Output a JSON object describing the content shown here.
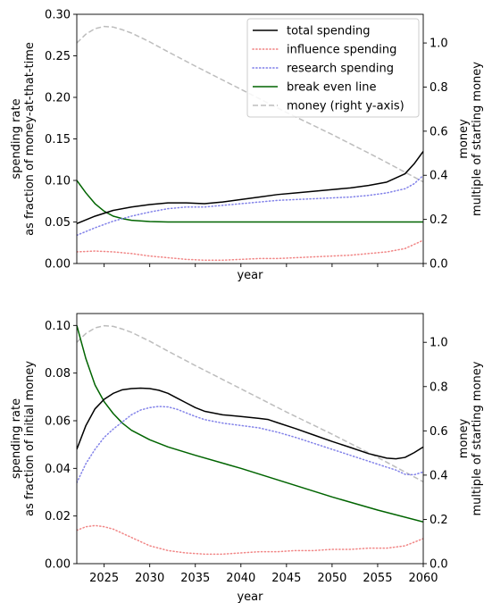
{
  "chart_data": [
    {
      "type": "line",
      "title": "",
      "xlabel": "year",
      "ylabel_lines": [
        "spending rate",
        "as fraction of money-at-that-time"
      ],
      "y2label_lines": [
        "money",
        "multiple of starting money"
      ],
      "xlim": [
        2022,
        2060
      ],
      "ylim": [
        0,
        0.3
      ],
      "y2lim": [
        0,
        1.13
      ],
      "yticks": [
        0.0,
        0.05,
        0.1,
        0.15,
        0.2,
        0.25,
        0.3
      ],
      "ytick_labels": [
        "0.00",
        "0.05",
        "0.10",
        "0.15",
        "0.20",
        "0.25",
        "0.30"
      ],
      "y2ticks": [
        0.0,
        0.2,
        0.4,
        0.6,
        0.8,
        1.0
      ],
      "y2tick_labels": [
        "0.0",
        "0.2",
        "0.4",
        "0.6",
        "0.8",
        "1.0"
      ],
      "xticks": [
        2025,
        2030,
        2035,
        2040,
        2045,
        2050,
        2055,
        2060
      ],
      "xtick_labels": [],
      "legend_position": "top-right",
      "legend": [
        {
          "label": "total spending",
          "color": "#000000",
          "style": "solid"
        },
        {
          "label": "influence spending",
          "color": "#f08080",
          "style": "dotted"
        },
        {
          "label": "research spending",
          "color": "#7b7be8",
          "style": "dotted"
        },
        {
          "label": "break even line",
          "color": "#006400",
          "style": "solid"
        },
        {
          "label": "money (right y-axis)",
          "color": "#bdbdbd",
          "style": "dashed"
        }
      ],
      "series": [
        {
          "name": "total spending",
          "axis": "left",
          "color": "#000000",
          "style": "solid",
          "x": [
            2022,
            2024,
            2026,
            2028,
            2030,
            2032,
            2034,
            2036,
            2038,
            2040,
            2042,
            2044,
            2046,
            2048,
            2050,
            2052,
            2054,
            2056,
            2058,
            2059,
            2060
          ],
          "y": [
            0.048,
            0.057,
            0.064,
            0.068,
            0.071,
            0.073,
            0.073,
            0.072,
            0.074,
            0.077,
            0.08,
            0.083,
            0.085,
            0.087,
            0.089,
            0.091,
            0.094,
            0.098,
            0.108,
            0.12,
            0.135
          ]
        },
        {
          "name": "influence spending",
          "axis": "left",
          "color": "#f08080",
          "style": "dotted",
          "x": [
            2022,
            2024,
            2026,
            2028,
            2030,
            2032,
            2034,
            2036,
            2038,
            2040,
            2042,
            2044,
            2046,
            2048,
            2050,
            2052,
            2054,
            2056,
            2058,
            2060
          ],
          "y": [
            0.014,
            0.015,
            0.014,
            0.012,
            0.009,
            0.007,
            0.005,
            0.004,
            0.004,
            0.005,
            0.006,
            0.006,
            0.007,
            0.008,
            0.009,
            0.01,
            0.012,
            0.014,
            0.018,
            0.028
          ]
        },
        {
          "name": "research spending",
          "axis": "left",
          "color": "#7b7be8",
          "style": "dotted",
          "x": [
            2022,
            2024,
            2026,
            2028,
            2030,
            2032,
            2034,
            2036,
            2038,
            2040,
            2042,
            2044,
            2046,
            2048,
            2050,
            2052,
            2054,
            2056,
            2058,
            2059,
            2060
          ],
          "y": [
            0.034,
            0.043,
            0.051,
            0.057,
            0.062,
            0.066,
            0.068,
            0.068,
            0.07,
            0.072,
            0.074,
            0.076,
            0.077,
            0.078,
            0.079,
            0.08,
            0.082,
            0.085,
            0.09,
            0.096,
            0.106
          ]
        },
        {
          "name": "break even line",
          "axis": "left",
          "color": "#006400",
          "style": "solid",
          "x": [
            2022,
            2023,
            2024,
            2025,
            2026,
            2027,
            2028,
            2030,
            2032,
            2035,
            2040,
            2045,
            2050,
            2055,
            2060
          ],
          "y": [
            0.1,
            0.085,
            0.072,
            0.063,
            0.057,
            0.054,
            0.052,
            0.0505,
            0.05,
            0.05,
            0.05,
            0.05,
            0.05,
            0.05,
            0.05
          ]
        },
        {
          "name": "money (right y-axis)",
          "axis": "right",
          "color": "#bdbdbd",
          "style": "dashed",
          "x": [
            2022,
            2023,
            2024,
            2025,
            2026,
            2027,
            2028,
            2030,
            2032,
            2035,
            2040,
            2045,
            2050,
            2055,
            2060
          ],
          "y": [
            1.0,
            1.04,
            1.065,
            1.075,
            1.072,
            1.06,
            1.045,
            1.005,
            0.96,
            0.895,
            0.79,
            0.685,
            0.585,
            0.48,
            0.37
          ]
        }
      ]
    },
    {
      "type": "line",
      "title": "",
      "xlabel": "year",
      "ylabel_lines": [
        "spending rate",
        "as fraction of initial money"
      ],
      "y2label_lines": [
        "money",
        "multiple of starting money"
      ],
      "xlim": [
        2022,
        2060
      ],
      "ylim": [
        0,
        0.105
      ],
      "y2lim": [
        0,
        1.13
      ],
      "yticks": [
        0.0,
        0.02,
        0.04,
        0.06,
        0.08,
        0.1
      ],
      "ytick_labels": [
        "0.00",
        "0.02",
        "0.04",
        "0.06",
        "0.08",
        "0.10"
      ],
      "y2ticks": [
        0.0,
        0.2,
        0.4,
        0.6,
        0.8,
        1.0
      ],
      "y2tick_labels": [
        "0.0",
        "0.2",
        "0.4",
        "0.6",
        "0.8",
        "1.0"
      ],
      "xticks": [
        2025,
        2030,
        2035,
        2040,
        2045,
        2050,
        2055,
        2060
      ],
      "xtick_labels": [
        "2025",
        "2030",
        "2035",
        "2040",
        "2045",
        "2050",
        "2055",
        "2060"
      ],
      "series": [
        {
          "name": "total spending",
          "axis": "left",
          "color": "#000000",
          "style": "solid",
          "x": [
            2022,
            2023,
            2024,
            2025,
            2026,
            2027,
            2028,
            2029,
            2030,
            2031,
            2032,
            2033,
            2034,
            2035,
            2036,
            2038,
            2040,
            2042,
            2043,
            2044,
            2046,
            2048,
            2050,
            2052,
            2054,
            2056,
            2057,
            2058,
            2059,
            2060
          ],
          "y": [
            0.048,
            0.058,
            0.065,
            0.069,
            0.0715,
            0.073,
            0.0735,
            0.0737,
            0.0735,
            0.0728,
            0.0715,
            0.0695,
            0.0675,
            0.0655,
            0.064,
            0.0625,
            0.0618,
            0.061,
            0.0605,
            0.0592,
            0.0567,
            0.054,
            0.0513,
            0.0488,
            0.0462,
            0.0443,
            0.044,
            0.0446,
            0.0466,
            0.049
          ]
        },
        {
          "name": "influence spending",
          "axis": "left",
          "color": "#f08080",
          "style": "dotted",
          "x": [
            2022,
            2023,
            2024,
            2025,
            2026,
            2028,
            2030,
            2032,
            2034,
            2036,
            2038,
            2040,
            2042,
            2044,
            2046,
            2048,
            2050,
            2052,
            2054,
            2056,
            2058,
            2060
          ],
          "y": [
            0.014,
            0.0155,
            0.016,
            0.0155,
            0.0145,
            0.011,
            0.0075,
            0.0055,
            0.0045,
            0.004,
            0.004,
            0.0045,
            0.005,
            0.005,
            0.0055,
            0.0055,
            0.006,
            0.006,
            0.0065,
            0.0065,
            0.0075,
            0.0105
          ]
        },
        {
          "name": "research spending",
          "axis": "left",
          "color": "#7b7be8",
          "style": "dotted",
          "x": [
            2022,
            2023,
            2024,
            2025,
            2026,
            2027,
            2028,
            2029,
            2030,
            2031,
            2032,
            2033,
            2034,
            2035,
            2036,
            2038,
            2040,
            2042,
            2044,
            2046,
            2048,
            2050,
            2052,
            2054,
            2056,
            2057,
            2058,
            2059,
            2060
          ],
          "y": [
            0.034,
            0.042,
            0.048,
            0.053,
            0.0565,
            0.0595,
            0.0625,
            0.0645,
            0.0655,
            0.066,
            0.0658,
            0.0648,
            0.0633,
            0.0618,
            0.0605,
            0.059,
            0.058,
            0.057,
            0.0552,
            0.053,
            0.0505,
            0.048,
            0.0455,
            0.043,
            0.0405,
            0.0393,
            0.0375,
            0.0373,
            0.0385
          ]
        },
        {
          "name": "break even line",
          "axis": "left",
          "color": "#006400",
          "style": "solid",
          "x": [
            2022,
            2023,
            2024,
            2025,
            2026,
            2027,
            2028,
            2030,
            2032,
            2035,
            2040,
            2045,
            2050,
            2055,
            2060
          ],
          "y": [
            0.1,
            0.086,
            0.075,
            0.068,
            0.063,
            0.059,
            0.056,
            0.052,
            0.049,
            0.0455,
            0.04,
            0.034,
            0.028,
            0.0225,
            0.0175
          ]
        },
        {
          "name": "money (right y-axis)",
          "axis": "right",
          "color": "#bdbdbd",
          "style": "dashed",
          "x": [
            2022,
            2023,
            2024,
            2025,
            2026,
            2027,
            2028,
            2030,
            2032,
            2035,
            2040,
            2045,
            2050,
            2055,
            2060
          ],
          "y": [
            1.0,
            1.04,
            1.065,
            1.075,
            1.072,
            1.06,
            1.045,
            1.005,
            0.96,
            0.895,
            0.79,
            0.685,
            0.585,
            0.48,
            0.37
          ]
        }
      ]
    }
  ]
}
